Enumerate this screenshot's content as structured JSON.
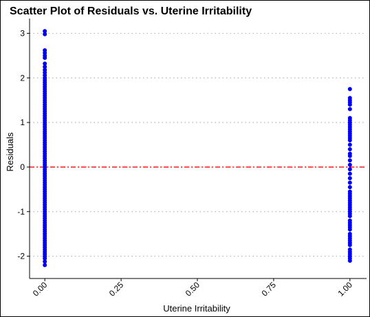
{
  "chart_data": {
    "type": "scatter",
    "title": "Scatter Plot of Residuals vs. Uterine Irritability",
    "xlabel": "Uterine Irritability",
    "ylabel": "Residuals",
    "xlim": [
      -0.05,
      1.05
    ],
    "ylim": [
      -2.5,
      3.3
    ],
    "x_ticks": [
      {
        "value": 0.0,
        "label": "0.00"
      },
      {
        "value": 0.25,
        "label": "0.25"
      },
      {
        "value": 0.5,
        "label": "0.50"
      },
      {
        "value": 0.75,
        "label": "0.75"
      },
      {
        "value": 1.0,
        "label": "1.00"
      }
    ],
    "y_ticks": [
      {
        "value": -2,
        "label": "-2"
      },
      {
        "value": -1,
        "label": "-1"
      },
      {
        "value": 0,
        "label": "0"
      },
      {
        "value": 1,
        "label": "1"
      },
      {
        "value": 2,
        "label": "2"
      },
      {
        "value": 3,
        "label": "3"
      }
    ],
    "grid": "horizontal-dotted",
    "point_color": "#0000ee",
    "reference_line": {
      "y": 0,
      "color": "#ff0000",
      "style": "dashed"
    },
    "series": [
      {
        "x": 0,
        "y": [
          3.05,
          2.98,
          2.62,
          2.56,
          2.5,
          2.45,
          2.32,
          2.25,
          2.18,
          2.12,
          2.06,
          2.0,
          1.95,
          1.9,
          1.85,
          1.8,
          1.75,
          1.7,
          1.65,
          1.6,
          1.55,
          1.5,
          1.45,
          1.4,
          1.35,
          1.3,
          1.25,
          1.2,
          1.15,
          1.1,
          1.05,
          1.0,
          0.95,
          0.9,
          0.85,
          0.8,
          0.75,
          0.7,
          0.65,
          0.6,
          0.55,
          0.5,
          0.45,
          0.4,
          0.35,
          0.3,
          0.25,
          0.2,
          0.15,
          0.1,
          0.05,
          0.0,
          -0.05,
          -0.1,
          -0.15,
          -0.2,
          -0.25,
          -0.3,
          -0.35,
          -0.4,
          -0.45,
          -0.5,
          -0.55,
          -0.6,
          -0.65,
          -0.7,
          -0.75,
          -0.8,
          -0.85,
          -0.9,
          -0.95,
          -1.0,
          -1.05,
          -1.1,
          -1.15,
          -1.2,
          -1.25,
          -1.3,
          -1.35,
          -1.4,
          -1.45,
          -1.5,
          -1.55,
          -1.6,
          -1.65,
          -1.7,
          -1.75,
          -1.8,
          -1.85,
          -1.9,
          -1.95,
          -2.0,
          -2.05,
          -2.12,
          -2.2
        ]
      },
      {
        "x": 1,
        "y": [
          1.75,
          1.55,
          1.5,
          1.45,
          1.4,
          1.3,
          1.1,
          1.05,
          1.0,
          0.95,
          0.9,
          0.85,
          0.8,
          0.75,
          0.7,
          0.65,
          0.6,
          0.5,
          0.4,
          0.3,
          0.25,
          0.15,
          0.05,
          -0.05,
          -0.15,
          -0.25,
          -0.35,
          -0.45,
          -0.55,
          -0.6,
          -0.65,
          -0.7,
          -0.75,
          -0.8,
          -0.85,
          -0.9,
          -0.95,
          -1.0,
          -1.05,
          -1.1,
          -1.2,
          -1.25,
          -1.3,
          -1.35,
          -1.4,
          -1.5,
          -1.55,
          -1.6,
          -1.65,
          -1.7,
          -1.75,
          -1.85,
          -1.9,
          -1.95,
          -2.0,
          -2.05,
          -2.1
        ]
      }
    ]
  }
}
